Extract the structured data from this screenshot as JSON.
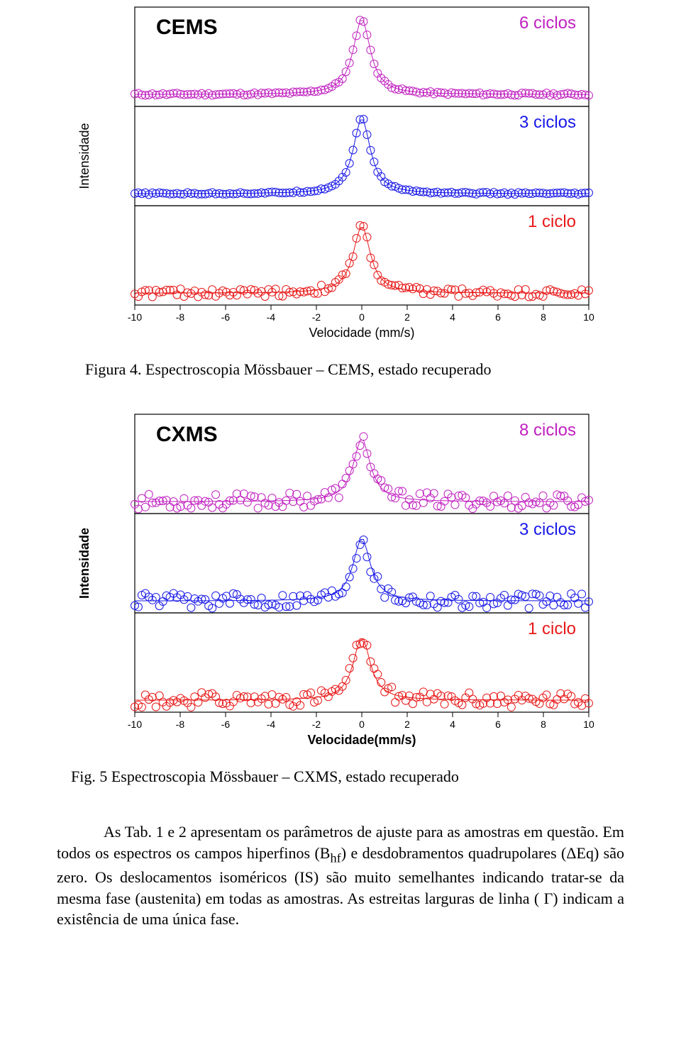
{
  "chart1": {
    "type": "scatter-line-stacked",
    "title": "CEMS",
    "title_fontsize": 30,
    "title_weight": "bold",
    "title_color": "#000000",
    "ylabel": "Intensidade",
    "ylabel_fontsize": 18,
    "xlabel": "Velocidade (mm/s)",
    "xlabel_fontsize": 18,
    "xlim": [
      -10,
      10
    ],
    "xtick_step": 2,
    "xticks": [
      -10,
      -8,
      -6,
      -4,
      -2,
      0,
      2,
      4,
      6,
      8,
      10
    ],
    "frame_color": "#000000",
    "background_color": "#ffffff",
    "marker": "circle-open",
    "marker_size": 5.5,
    "line_width": 1,
    "panels": [
      {
        "label": "6 ciclos",
        "label_color": "#c020c0",
        "series_color": "#c020c0",
        "label_fontsize": 24,
        "noise": 0.015,
        "peak_height": 0.9
      },
      {
        "label": "3 ciclos",
        "label_color": "#1818e8",
        "series_color": "#1818e8",
        "label_fontsize": 24,
        "noise": 0.012,
        "peak_height": 0.9
      },
      {
        "label": "1 ciclo",
        "label_color": "#e81818",
        "series_color": "#e81818",
        "label_fontsize": 24,
        "noise": 0.05,
        "peak_height": 0.8
      }
    ]
  },
  "caption1": "Figura 4. Espectroscopia Mössbauer – CEMS, estado recuperado",
  "chart2": {
    "type": "scatter-line-stacked",
    "title": "CXMS",
    "title_fontsize": 30,
    "title_weight": "bold",
    "title_color": "#000000",
    "ylabel": "Intensidade",
    "ylabel_fontsize": 18,
    "ylabel_weight": "bold",
    "xlabel": "Velocidade(mm/s)",
    "xlabel_fontsize": 18,
    "xlabel_weight": "bold",
    "xlim": [
      -10,
      10
    ],
    "xtick_step": 2,
    "xticks": [
      -10,
      -8,
      -6,
      -4,
      -2,
      0,
      2,
      4,
      6,
      8,
      10
    ],
    "frame_color": "#000000",
    "background_color": "#ffffff",
    "marker": "circle-open",
    "marker_size": 5.5,
    "line_width": 1,
    "panels": [
      {
        "label": "8 ciclos",
        "label_color": "#c020c0",
        "series_color": "#c020c0",
        "label_fontsize": 24,
        "noise": 0.09,
        "peak_height": 0.75
      },
      {
        "label": "3 ciclos",
        "label_color": "#1818e8",
        "series_color": "#1818e8",
        "label_fontsize": 24,
        "noise": 0.09,
        "peak_height": 0.75
      },
      {
        "label": "1 ciclo",
        "label_color": "#e81818",
        "series_color": "#e81818",
        "label_fontsize": 24,
        "noise": 0.09,
        "peak_height": 0.75
      }
    ]
  },
  "caption2": "Fig. 5 Espectroscopia Mössbauer – CXMS, estado recuperado",
  "paragraph": "As Tab. 1 e 2 apresentam os parâmetros de ajuste para as amostras em questão. Em todos os espectros os campos hiperfinos (Bₕբ) e desdobramentos quadrupolares (ΔEq) são zero. Os deslocamentos isoméricos (IS) são muito semelhantes indicando tratar-se da mesma fase (austenita) em todas as amostras. As estreitas larguras de linha ( Γ) indicam a existência de uma única fase.",
  "para_parts": {
    "lead": "As Tab. 1 e 2 apresentam os parâmetros de ajuste para as amostras em questão. Em todos os espectros os campos hiperfinos (B",
    "sub": "hf",
    "rest": ") e desdobramentos quadrupolares (ΔEq) são zero. Os deslocamentos isoméricos (IS) são muito semelhantes indicando tratar-se da mesma fase (austenita) em todas as amostras. As estreitas larguras de linha ( Γ) indicam a existência de uma única fase."
  }
}
